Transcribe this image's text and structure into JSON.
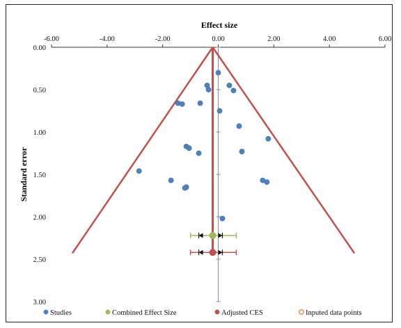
{
  "chart_data": {
    "type": "scatter",
    "title": "Effect size",
    "xlabel": "Effect size",
    "ylabel": "Standard error",
    "x_ticks": [
      "-6.00",
      "-4.00",
      "-2.00",
      "0.00",
      "2.00",
      "4.00",
      "6.00"
    ],
    "y_ticks": [
      "0.00",
      "0.50",
      "1.00",
      "1.50",
      "2.00",
      "2.50",
      "3.00"
    ],
    "xlim": [
      -6,
      6
    ],
    "ylim": [
      0,
      3
    ],
    "x_axis_position": "top",
    "y_axis_inverted": true,
    "grid": false,
    "legend_position": "bottom",
    "series": [
      {
        "name": "Studies",
        "color": "#4f81bd",
        "points": [
          {
            "x": 0.0,
            "y": 0.3
          },
          {
            "x": -0.4,
            "y": 0.45
          },
          {
            "x": 0.4,
            "y": 0.45
          },
          {
            "x": -0.35,
            "y": 0.5
          },
          {
            "x": 0.55,
            "y": 0.51
          },
          {
            "x": -1.45,
            "y": 0.66
          },
          {
            "x": -1.3,
            "y": 0.67
          },
          {
            "x": -0.65,
            "y": 0.66
          },
          {
            "x": 0.05,
            "y": 0.75
          },
          {
            "x": 0.75,
            "y": 0.93
          },
          {
            "x": 1.8,
            "y": 1.08
          },
          {
            "x": -1.15,
            "y": 1.17
          },
          {
            "x": -1.05,
            "y": 1.19
          },
          {
            "x": -0.7,
            "y": 1.25
          },
          {
            "x": 0.85,
            "y": 1.23
          },
          {
            "x": -2.85,
            "y": 1.46
          },
          {
            "x": -1.7,
            "y": 1.57
          },
          {
            "x": 1.6,
            "y": 1.57
          },
          {
            "x": 1.75,
            "y": 1.59
          },
          {
            "x": -1.15,
            "y": 1.65
          },
          {
            "x": -1.2,
            "y": 1.66
          },
          {
            "x": 0.15,
            "y": 2.02
          }
        ]
      },
      {
        "name": "Combined Effect Size",
        "color": "#9bbb59",
        "estimate": -0.2,
        "ci": [
          -1.0,
          0.65
        ],
        "y": 2.22
      },
      {
        "name": "Adjusted CES",
        "color": "#c0504d",
        "estimate": -0.2,
        "ci": [
          -1.0,
          0.65
        ],
        "y": 2.42
      },
      {
        "name": "Inputed data points",
        "color": "#f79646",
        "points": []
      }
    ],
    "funnel": {
      "color": "#c0504d",
      "apex": {
        "x": -0.2,
        "y": 0.0
      },
      "left_base": {
        "x": -5.25,
        "y": 2.43
      },
      "right_base": {
        "x": 4.9,
        "y": 2.43
      },
      "vertical_line_x": -0.2
    }
  }
}
